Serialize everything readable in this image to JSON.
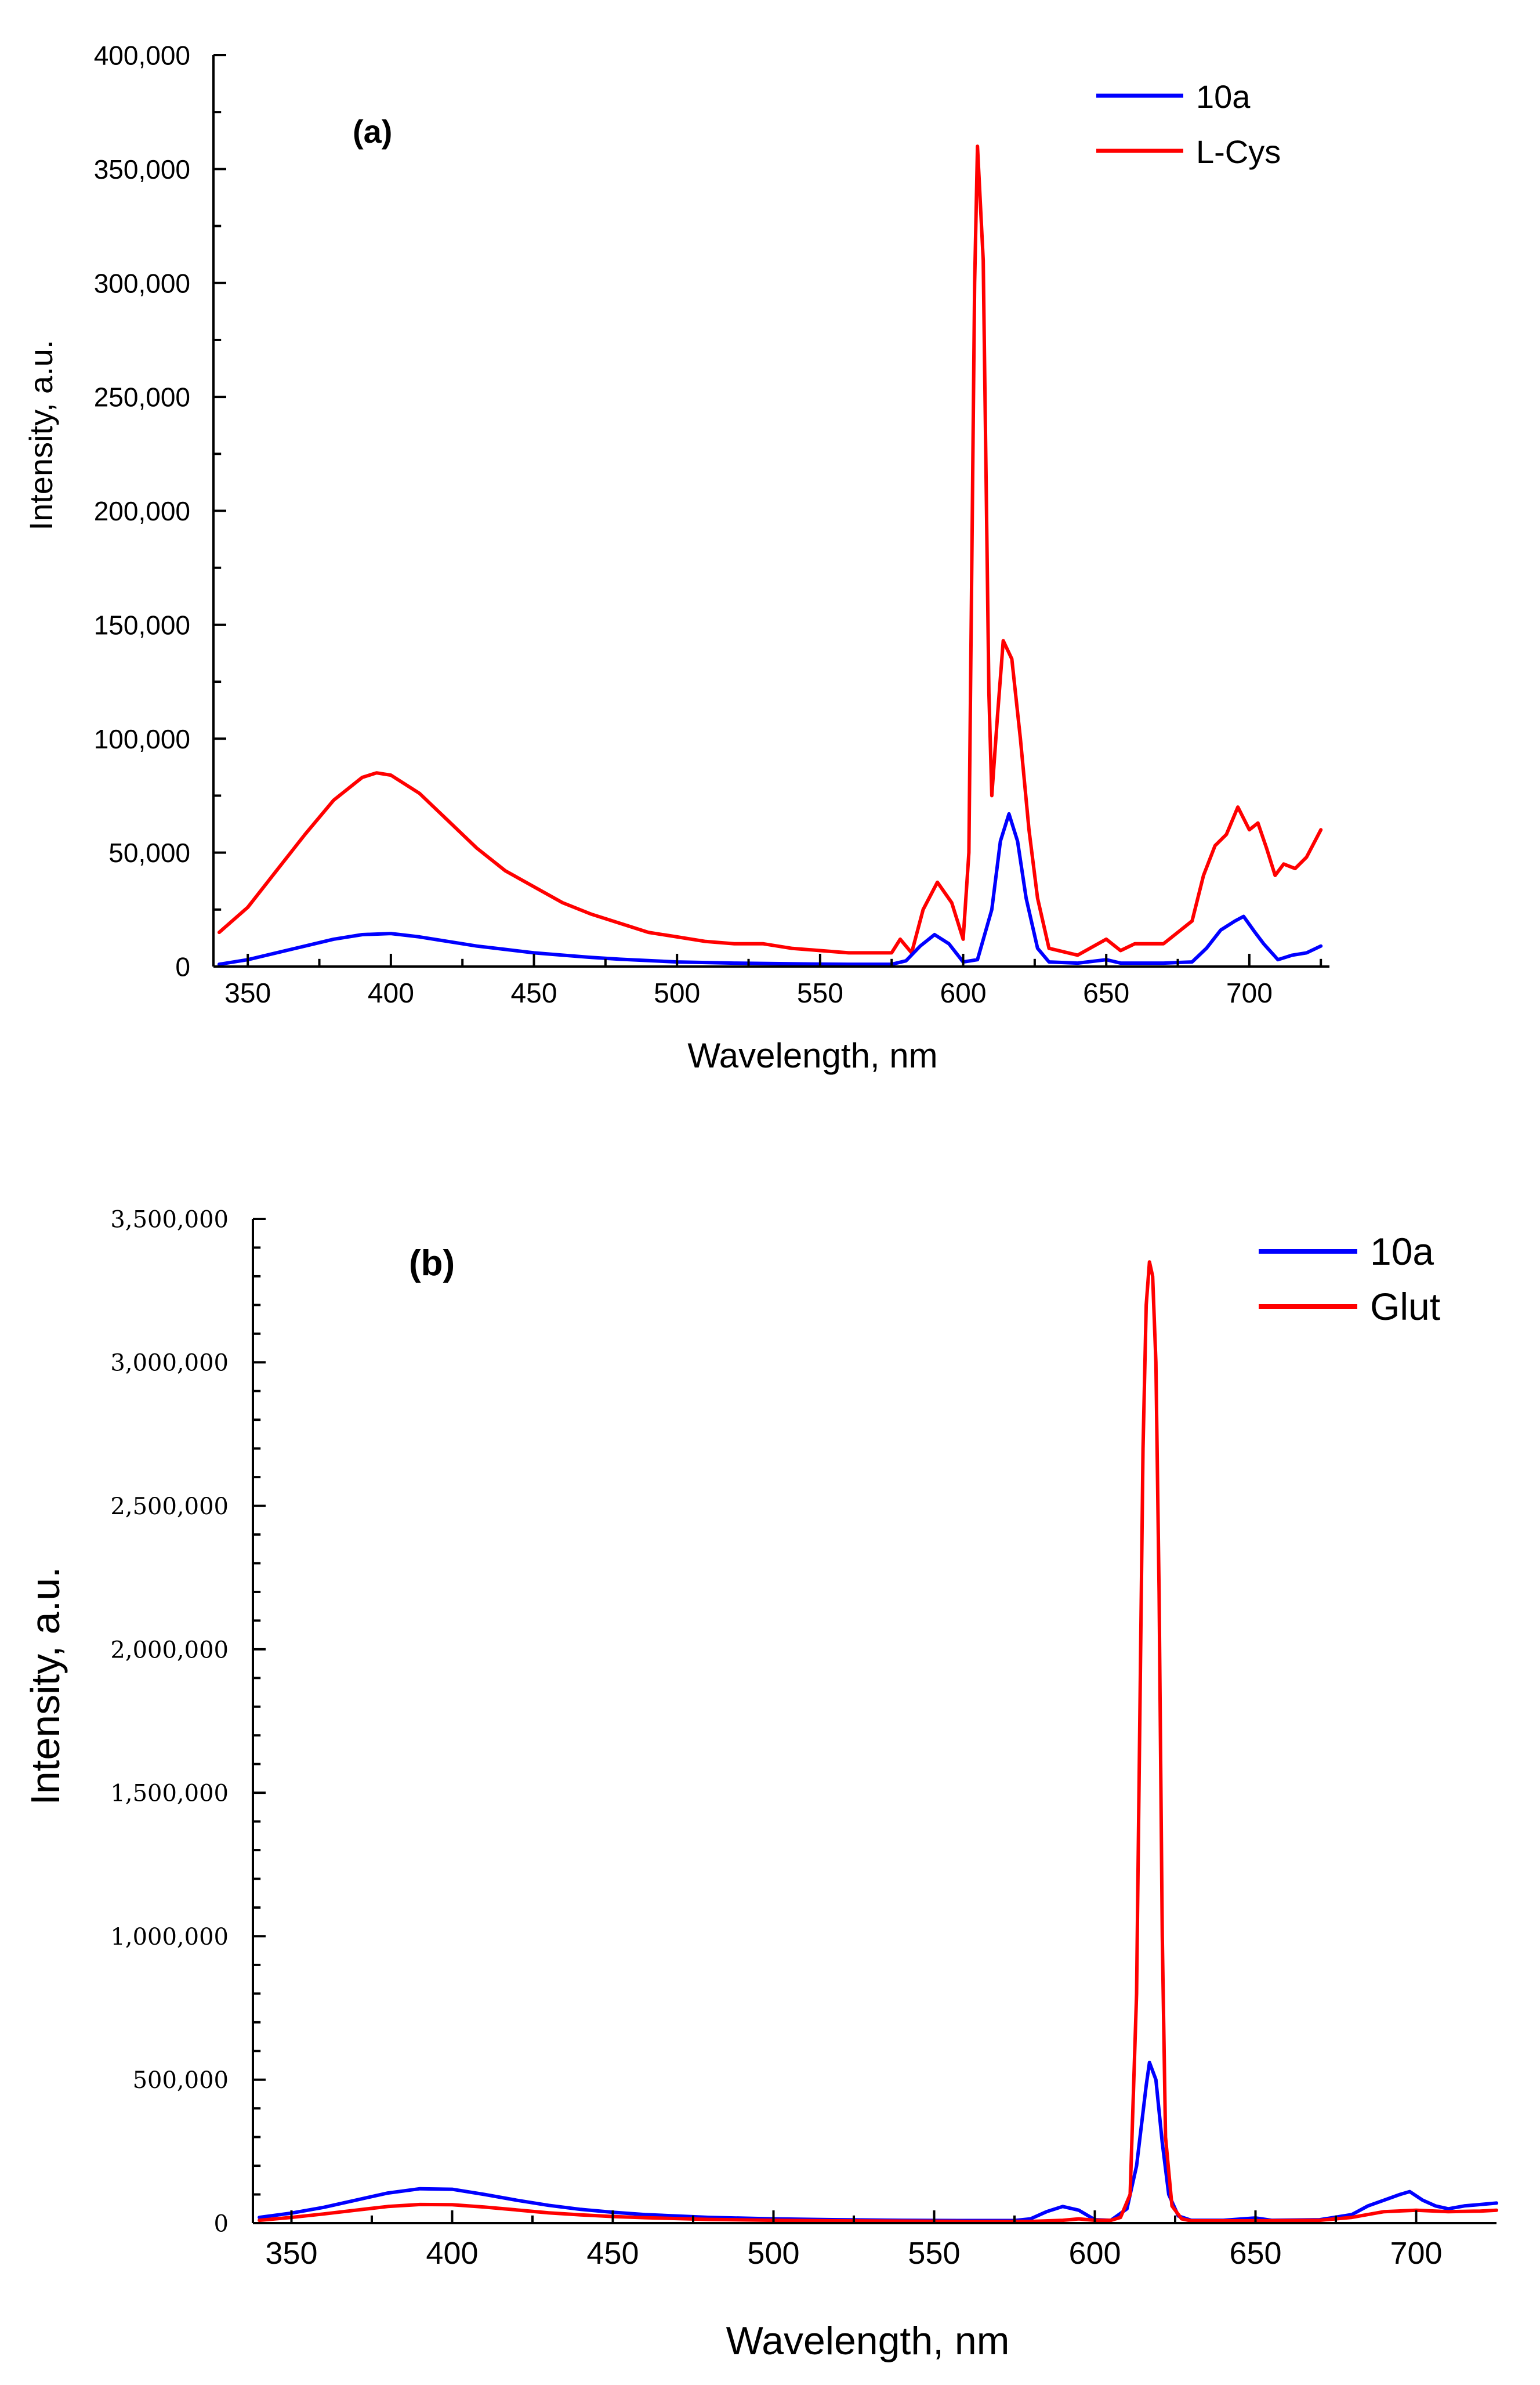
{
  "chart_data": [
    {
      "type": "line",
      "panel_label": "(a)",
      "xlabel": "Wavelength, nm",
      "ylabel": "Intensity, a.u.",
      "xlim": [
        338,
        728
      ],
      "ylim": [
        0,
        400000
      ],
      "xticks": [
        350,
        400,
        450,
        500,
        550,
        600,
        650,
        700
      ],
      "xtick_labels": [
        "350",
        "400",
        "450",
        "500",
        "550",
        "600",
        "650",
        "700"
      ],
      "yticks": [
        0,
        50000,
        100000,
        150000,
        200000,
        250000,
        300000,
        350000,
        400000
      ],
      "ytick_labels": [
        "0",
        "50,000",
        "100,000",
        "150,000",
        "200,000",
        "250,000",
        "300,000",
        "350,000",
        "400,000"
      ],
      "legend_position": "top-right",
      "series": [
        {
          "name": "10a",
          "color": "#0000ff",
          "points": [
            [
              340,
              1000
            ],
            [
              350,
              3000
            ],
            [
              360,
              6000
            ],
            [
              370,
              9000
            ],
            [
              380,
              12000
            ],
            [
              390,
              14000
            ],
            [
              400,
              14500
            ],
            [
              410,
              13000
            ],
            [
              420,
              11000
            ],
            [
              430,
              9000
            ],
            [
              440,
              7500
            ],
            [
              450,
              6000
            ],
            [
              460,
              5000
            ],
            [
              470,
              4000
            ],
            [
              480,
              3200
            ],
            [
              490,
              2600
            ],
            [
              500,
              2000
            ],
            [
              520,
              1500
            ],
            [
              540,
              1200
            ],
            [
              560,
              1000
            ],
            [
              575,
              1000
            ],
            [
              580,
              2500
            ],
            [
              585,
              9000
            ],
            [
              590,
              14000
            ],
            [
              595,
              10000
            ],
            [
              600,
              2000
            ],
            [
              605,
              3000
            ],
            [
              610,
              25000
            ],
            [
              613,
              55000
            ],
            [
              616,
              67000
            ],
            [
              619,
              55000
            ],
            [
              622,
              30000
            ],
            [
              626,
              8000
            ],
            [
              630,
              2000
            ],
            [
              640,
              1500
            ],
            [
              650,
              3000
            ],
            [
              655,
              1500
            ],
            [
              670,
              1500
            ],
            [
              680,
              2000
            ],
            [
              685,
              8000
            ],
            [
              690,
              16000
            ],
            [
              695,
              20000
            ],
            [
              698,
              22000
            ],
            [
              702,
              15000
            ],
            [
              705,
              10000
            ],
            [
              710,
              3000
            ],
            [
              715,
              5000
            ],
            [
              720,
              6000
            ],
            [
              725,
              9000
            ]
          ]
        },
        {
          "name": "L-Cys",
          "color": "#ff0000",
          "points": [
            [
              340,
              15000
            ],
            [
              350,
              26000
            ],
            [
              360,
              42000
            ],
            [
              370,
              58000
            ],
            [
              380,
              73000
            ],
            [
              390,
              83000
            ],
            [
              395,
              85000
            ],
            [
              400,
              84000
            ],
            [
              410,
              76000
            ],
            [
              420,
              64000
            ],
            [
              430,
              52000
            ],
            [
              440,
              42000
            ],
            [
              450,
              35000
            ],
            [
              460,
              28000
            ],
            [
              470,
              23000
            ],
            [
              480,
              19000
            ],
            [
              490,
              15000
            ],
            [
              500,
              13000
            ],
            [
              510,
              11000
            ],
            [
              520,
              10000
            ],
            [
              530,
              10000
            ],
            [
              540,
              8000
            ],
            [
              550,
              7000
            ],
            [
              560,
              6000
            ],
            [
              575,
              6000
            ],
            [
              578,
              12000
            ],
            [
              582,
              6000
            ],
            [
              586,
              25000
            ],
            [
              591,
              37000
            ],
            [
              596,
              28000
            ],
            [
              600,
              12000
            ],
            [
              602,
              50000
            ],
            [
              604,
              300000
            ],
            [
              605,
              360000
            ],
            [
              607,
              310000
            ],
            [
              609,
              120000
            ],
            [
              610,
              75000
            ],
            [
              612,
              110000
            ],
            [
              614,
              143000
            ],
            [
              617,
              135000
            ],
            [
              620,
              100000
            ],
            [
              623,
              60000
            ],
            [
              626,
              30000
            ],
            [
              630,
              8000
            ],
            [
              640,
              5000
            ],
            [
              650,
              12000
            ],
            [
              655,
              7000
            ],
            [
              660,
              10000
            ],
            [
              670,
              10000
            ],
            [
              680,
              20000
            ],
            [
              684,
              40000
            ],
            [
              688,
              53000
            ],
            [
              692,
              58000
            ],
            [
              696,
              70000
            ],
            [
              700,
              60000
            ],
            [
              703,
              63000
            ],
            [
              706,
              52000
            ],
            [
              709,
              40000
            ],
            [
              712,
              45000
            ],
            [
              716,
              43000
            ],
            [
              720,
              48000
            ],
            [
              725,
              60000
            ]
          ]
        }
      ]
    },
    {
      "type": "line",
      "panel_label": "(b)",
      "xlabel": "Wavelength, nm",
      "ylabel": "Intensity, a.u.",
      "xlim": [
        338,
        725
      ],
      "ylim": [
        0,
        3500000
      ],
      "xticks": [
        350,
        400,
        450,
        500,
        550,
        600,
        650,
        700
      ],
      "xtick_labels": [
        "350",
        "400",
        "450",
        "500",
        "550",
        "600",
        "650",
        "700"
      ],
      "yticks": [
        0,
        500000,
        1000000,
        1500000,
        2000000,
        2500000,
        3000000,
        3500000
      ],
      "ytick_labels": [
        "0",
        "500,000",
        "1,000,000",
        "1,500,000",
        "2,000,000",
        "2,500,000",
        "3,000,000",
        "3,500,000"
      ],
      "legend_position": "top-right",
      "series": [
        {
          "name": "10a",
          "color": "#0000ff",
          "points": [
            [
              340,
              20000
            ],
            [
              350,
              35000
            ],
            [
              360,
              55000
            ],
            [
              370,
              80000
            ],
            [
              380,
              105000
            ],
            [
              390,
              120000
            ],
            [
              400,
              118000
            ],
            [
              410,
              100000
            ],
            [
              420,
              80000
            ],
            [
              430,
              62000
            ],
            [
              440,
              48000
            ],
            [
              450,
              38000
            ],
            [
              460,
              30000
            ],
            [
              480,
              20000
            ],
            [
              500,
              15000
            ],
            [
              520,
              12000
            ],
            [
              540,
              10000
            ],
            [
              560,
              9000
            ],
            [
              575,
              9000
            ],
            [
              580,
              15000
            ],
            [
              585,
              40000
            ],
            [
              590,
              58000
            ],
            [
              595,
              45000
            ],
            [
              600,
              12000
            ],
            [
              605,
              10000
            ],
            [
              610,
              50000
            ],
            [
              613,
              200000
            ],
            [
              616,
              480000
            ],
            [
              617,
              560000
            ],
            [
              619,
              500000
            ],
            [
              621,
              280000
            ],
            [
              623,
              100000
            ],
            [
              626,
              25000
            ],
            [
              630,
              10000
            ],
            [
              640,
              10000
            ],
            [
              650,
              18000
            ],
            [
              655,
              10000
            ],
            [
              670,
              12000
            ],
            [
              680,
              30000
            ],
            [
              685,
              60000
            ],
            [
              690,
              80000
            ],
            [
              695,
              100000
            ],
            [
              698,
              110000
            ],
            [
              702,
              80000
            ],
            [
              706,
              60000
            ],
            [
              710,
              50000
            ],
            [
              715,
              60000
            ],
            [
              720,
              65000
            ],
            [
              725,
              70000
            ]
          ]
        },
        {
          "name": "Glut",
          "color": "#ff0000",
          "points": [
            [
              340,
              10000
            ],
            [
              350,
              20000
            ],
            [
              360,
              32000
            ],
            [
              370,
              45000
            ],
            [
              380,
              58000
            ],
            [
              390,
              65000
            ],
            [
              400,
              64000
            ],
            [
              410,
              56000
            ],
            [
              420,
              46000
            ],
            [
              430,
              36000
            ],
            [
              440,
              29000
            ],
            [
              450,
              23000
            ],
            [
              460,
              19000
            ],
            [
              480,
              13000
            ],
            [
              500,
              10000
            ],
            [
              520,
              8000
            ],
            [
              540,
              7000
            ],
            [
              560,
              6000
            ],
            [
              580,
              6000
            ],
            [
              590,
              10000
            ],
            [
              595,
              15000
            ],
            [
              600,
              10000
            ],
            [
              605,
              10000
            ],
            [
              608,
              20000
            ],
            [
              611,
              100000
            ],
            [
              613,
              800000
            ],
            [
              615,
              2700000
            ],
            [
              616,
              3200000
            ],
            [
              617,
              3350000
            ],
            [
              618,
              3300000
            ],
            [
              619,
              3000000
            ],
            [
              620,
              2200000
            ],
            [
              621,
              1000000
            ],
            [
              622,
              300000
            ],
            [
              624,
              60000
            ],
            [
              627,
              15000
            ],
            [
              630,
              8000
            ],
            [
              650,
              8000
            ],
            [
              670,
              10000
            ],
            [
              680,
              20000
            ],
            [
              690,
              40000
            ],
            [
              700,
              45000
            ],
            [
              710,
              40000
            ],
            [
              720,
              42000
            ],
            [
              725,
              45000
            ]
          ]
        }
      ]
    }
  ]
}
